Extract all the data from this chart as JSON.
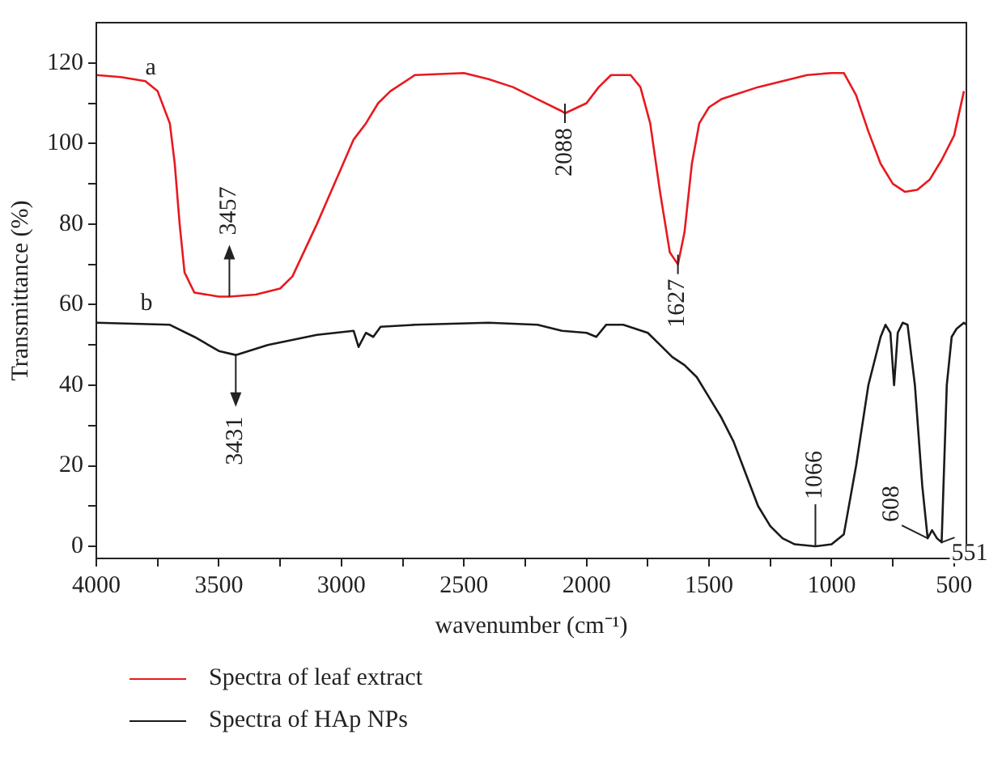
{
  "chart_data": {
    "type": "line",
    "xlabel": "wavenumber (cm⁻¹)",
    "ylabel": "Transmittance (%)",
    "xlim": [
      4000,
      450
    ],
    "ylim": [
      -3,
      130
    ],
    "xticks": [
      4000,
      {
        "value": 3750,
        "label": null
      },
      3500,
      {
        "value": 3250,
        "label": null
      },
      3000,
      {
        "value": 2750,
        "label": null
      },
      2500,
      {
        "value": 2250,
        "label": null
      },
      2000,
      {
        "value": 1750,
        "label": null
      },
      1500,
      {
        "value": 1250,
        "label": null
      },
      1000,
      {
        "value": 750,
        "label": null
      },
      500
    ],
    "yticks": [
      0,
      {
        "value": 10,
        "label": null
      },
      20,
      {
        "value": 30,
        "label": null
      },
      40,
      {
        "value": 50,
        "label": null
      },
      60,
      {
        "value": 70,
        "label": null
      },
      80,
      {
        "value": 90,
        "label": null
      },
      100,
      {
        "value": 110,
        "label": null
      },
      120
    ],
    "grid": false,
    "legend": "bottom",
    "marker": "none",
    "line_style": "solid",
    "series": [
      {
        "name": "Spectra of leaf extract",
        "color": "#e8191f",
        "x": [
          4000,
          3900,
          3800,
          3750,
          3700,
          3680,
          3660,
          3640,
          3600,
          3500,
          3457,
          3350,
          3250,
          3200,
          3100,
          3000,
          2950,
          2900,
          2850,
          2800,
          2700,
          2500,
          2400,
          2300,
          2200,
          2100,
          2088,
          2000,
          1950,
          1900,
          1820,
          1780,
          1740,
          1700,
          1660,
          1627,
          1600,
          1570,
          1540,
          1500,
          1450,
          1400,
          1300,
          1200,
          1100,
          1000,
          950,
          900,
          850,
          800,
          750,
          700,
          650,
          600,
          550,
          500,
          460
        ],
        "values": [
          117,
          116.5,
          115.5,
          113,
          105,
          95,
          80,
          68,
          63,
          62,
          62,
          62.5,
          64,
          67,
          80,
          94,
          101,
          105,
          110,
          113,
          117,
          117.5,
          116,
          114,
          111,
          108,
          107.5,
          110,
          114,
          117,
          117,
          114,
          105,
          88,
          73,
          70,
          78,
          95,
          105,
          109,
          111,
          112,
          114,
          115.5,
          117,
          117.5,
          117.5,
          112,
          103,
          95,
          90,
          88,
          88.5,
          91,
          96,
          102,
          113
        ]
      },
      {
        "name": "Spectra of HAp NPs",
        "color": "#1a1a1a",
        "x": [
          4000,
          3700,
          3600,
          3500,
          3431,
          3300,
          3100,
          2950,
          2930,
          2900,
          2870,
          2840,
          2700,
          2400,
          2200,
          2100,
          2000,
          1960,
          1920,
          1850,
          1750,
          1700,
          1650,
          1600,
          1550,
          1500,
          1450,
          1400,
          1350,
          1300,
          1250,
          1200,
          1150,
          1066,
          1000,
          950,
          900,
          850,
          800,
          780,
          760,
          745,
          730,
          710,
          690,
          660,
          630,
          608,
          590,
          570,
          551,
          530,
          510,
          490,
          460,
          450
        ],
        "values": [
          55.5,
          55,
          52,
          48.5,
          47.5,
          50,
          52.5,
          53.5,
          49.5,
          53,
          52,
          54.5,
          55,
          55.5,
          55,
          53.5,
          53,
          52,
          55,
          55,
          53,
          50,
          47,
          45,
          42,
          37,
          32,
          26,
          18,
          10,
          5,
          2,
          0.5,
          0,
          0.5,
          3,
          20,
          40,
          52,
          55,
          53,
          40,
          53,
          55.5,
          55,
          40,
          15,
          2,
          4,
          2,
          1,
          40,
          52,
          54,
          55.5,
          55
        ]
      }
    ],
    "annotations": [
      {
        "text": "a",
        "x": 3800,
        "y": 115.5
      },
      {
        "text": "b",
        "x": 3820,
        "y": 57
      },
      {
        "text": "3457",
        "x": 3457,
        "y": 62
      },
      {
        "text": "3431",
        "x": 3431,
        "y": 47.5
      },
      {
        "text": "2088",
        "x": 2088,
        "y": 107.5
      },
      {
        "text": "1627",
        "x": 1627,
        "y": 70
      },
      {
        "text": "1066",
        "x": 1066,
        "y": 0
      },
      {
        "text": "608",
        "x": 608,
        "y": 2
      },
      {
        "text": "551",
        "x": 551,
        "y": 1
      }
    ]
  }
}
